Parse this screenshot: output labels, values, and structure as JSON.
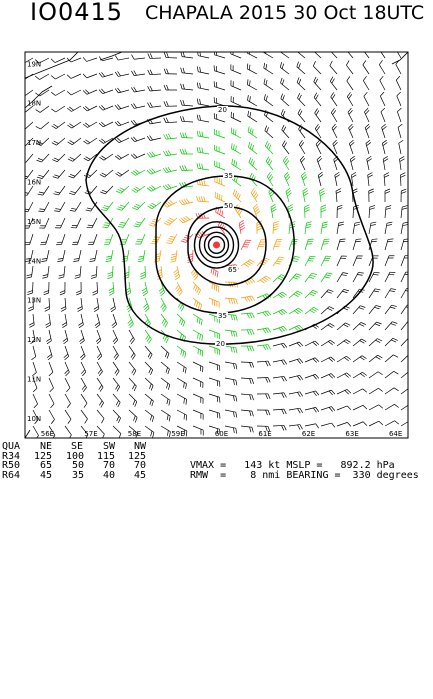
{
  "title": {
    "storm_id": "IO0415",
    "storm_info": "CHAPALA 2015 30 Oct 18UTC"
  },
  "map": {
    "lat_labels": [
      "19N",
      "18N",
      "17N",
      "16N",
      "15N",
      "14N",
      "13N",
      "12N",
      "11N",
      "10N"
    ],
    "lon_labels": [
      "58E",
      "59E",
      "60E",
      "61E",
      "62E",
      "63E",
      "64E",
      "56E",
      "57E"
    ],
    "lon_labels_ordered": [
      "56E",
      "57E",
      "58E",
      "59E",
      "60E",
      "61E",
      "62E",
      "63E",
      "64E"
    ],
    "lat_range": [
      9.5,
      19.3
    ],
    "lon_range": [
      55.5,
      64.3
    ],
    "storm_center": {
      "lat": 14.3,
      "lon": 59.9
    },
    "contours": [
      {
        "label": "20",
        "color": "#000000"
      },
      {
        "label": "35",
        "color": "#000000"
      },
      {
        "label": "50",
        "color": "#000000"
      },
      {
        "label": "65",
        "color": "#000000"
      }
    ],
    "wind_colors": {
      "below_34": "#000000",
      "gale": "#00cc00",
      "storm": "#ff9900",
      "hurricane": "#ff3333"
    },
    "coast_color": "#000000"
  },
  "table": {
    "header": [
      "QUA",
      "NE",
      "SE",
      "SW",
      "NW"
    ],
    "rows": [
      [
        "R34",
        "125",
        "100",
        "115",
        "125"
      ],
      [
        "R50",
        "65",
        "50",
        "70",
        "70"
      ],
      [
        "R64",
        "45",
        "35",
        "40",
        "45"
      ]
    ]
  },
  "summary": {
    "line1": "VMAX =   143 kt MSLP =   892.2 hPa",
    "line2": "RMW  =    8 nmi BEARING =  330 degrees"
  }
}
